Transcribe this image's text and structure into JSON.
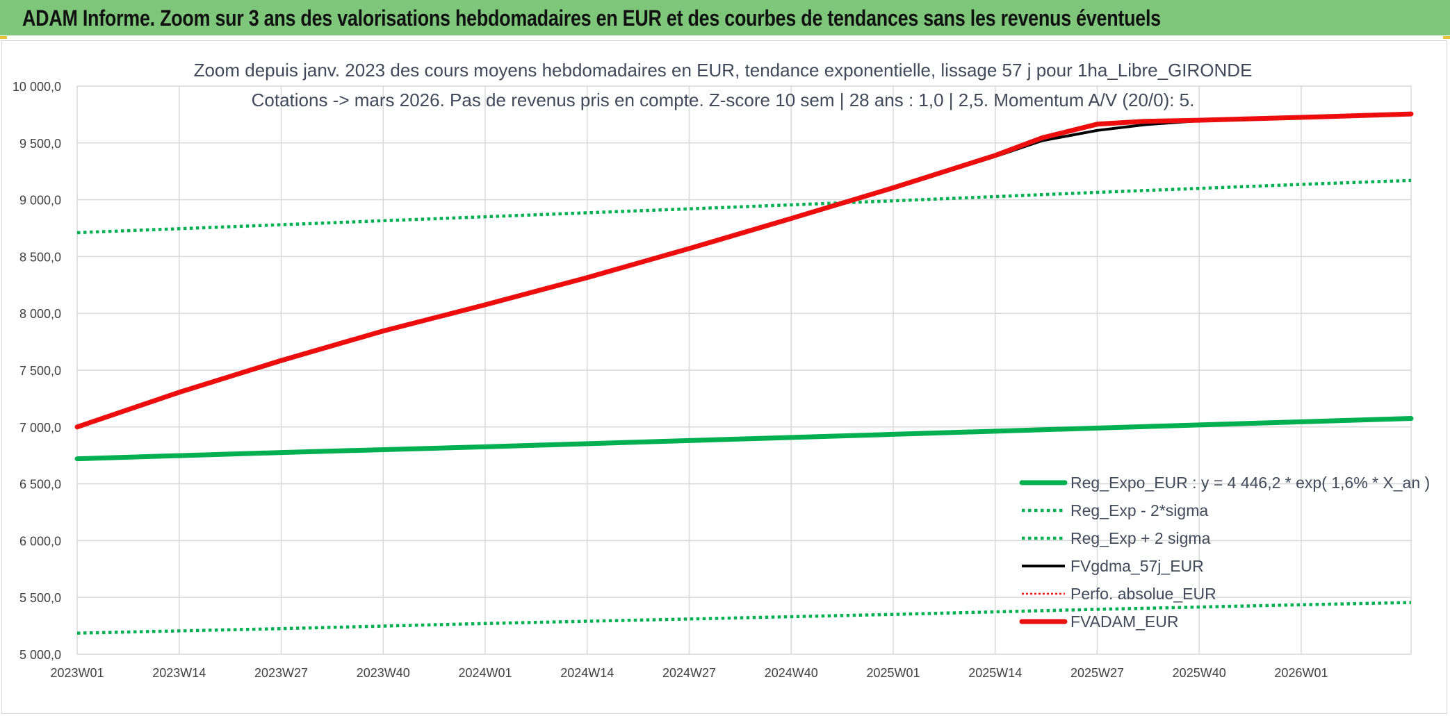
{
  "banner": {
    "title": "ADAM Informe. Zoom sur 3 ans des valorisations hebdomadaires en EUR et des courbes de tendances sans les revenus éventuels"
  },
  "colors": {
    "banner_bg": "#7dc67a",
    "reg_expo": "#00b050",
    "fvgdma": "#000000",
    "perfo": "#ff0000",
    "fvadam": "#e81010",
    "grid": "#d9d9d9"
  },
  "chart_data": {
    "type": "line",
    "title": "Zoom depuis janv. 2023 des cours moyens hebdomadaires en EUR, tendance exponentielle, lissage 57 j pour 1ha_Libre_GIRONDE",
    "subtitle": "Cotations -> mars 2026. Pas de revenus pris en compte. Z-score 10 sem | 28 ans : 1,0 | 2,5. Momentum A/V (20/0): 5.",
    "xlabel": "",
    "ylabel": "",
    "x_tick_labels": [
      "2023W01",
      "2023W14",
      "2023W27",
      "2023W40",
      "2024W01",
      "2024W14",
      "2024W27",
      "2024W40",
      "2025W01",
      "2025W14",
      "2025W27",
      "2025W40",
      "2026W01"
    ],
    "x_ticks_week_index": [
      0,
      13,
      26,
      39,
      52,
      65,
      78,
      91,
      104,
      117,
      130,
      143,
      156
    ],
    "x_range_week_index": [
      0,
      170
    ],
    "ylim": [
      5000,
      10000
    ],
    "y_tick_values": [
      5000,
      5500,
      6000,
      6500,
      7000,
      7500,
      8000,
      8500,
      9000,
      9500,
      10000
    ],
    "y_tick_labels": [
      "5 000,0",
      "5 500,0",
      "6 000,0",
      "6 500,0",
      "7 000,0",
      "7 500,0",
      "8 000,0",
      "8 500,0",
      "9 000,0",
      "9 500,0",
      "10 000,0"
    ],
    "grid": true,
    "legend_position": "bottom-right",
    "series": [
      {
        "name": "Reg_Expo_EUR : y = 4 446,2 * exp( 1,6% *  X_an )",
        "style": "solid-thick",
        "color": "#00b050",
        "x": [
          0,
          26,
          52,
          78,
          104,
          130,
          156,
          170
        ],
        "y": [
          6720,
          6775,
          6825,
          6880,
          6935,
          6990,
          7045,
          7075
        ]
      },
      {
        "name": "Reg_Exp - 2*sigma",
        "style": "dotted",
        "color": "#00b050",
        "x": [
          0,
          26,
          52,
          78,
          104,
          130,
          156,
          170
        ],
        "y": [
          5185,
          5225,
          5270,
          5310,
          5350,
          5395,
          5435,
          5455
        ]
      },
      {
        "name": "Reg_Exp + 2 sigma",
        "style": "dotted",
        "color": "#00b050",
        "x": [
          0,
          26,
          52,
          78,
          104,
          130,
          156,
          170
        ],
        "y": [
          8710,
          8780,
          8850,
          8920,
          8990,
          9065,
          9135,
          9170
        ]
      },
      {
        "name": "FVgdma_57j_EUR",
        "style": "solid",
        "color": "#000000",
        "x": [
          0,
          13,
          26,
          39,
          52,
          65,
          78,
          91,
          104,
          117,
          123,
          130,
          136,
          143,
          156,
          170
        ],
        "y": [
          7000,
          7300,
          7575,
          7840,
          8070,
          8310,
          8565,
          8830,
          9100,
          9380,
          9520,
          9610,
          9660,
          9695,
          9725,
          9755
        ]
      },
      {
        "name": "Perfo. absolue_EUR",
        "style": "dotted-thin",
        "color": "#ff0000",
        "x": [
          0,
          13,
          26,
          39,
          52,
          65,
          78,
          91,
          104,
          117,
          123,
          130,
          136,
          143,
          156,
          170
        ],
        "y": [
          7000,
          7305,
          7585,
          7845,
          8075,
          8315,
          8570,
          8835,
          9105,
          9390,
          9545,
          9665,
          9690,
          9700,
          9725,
          9755
        ]
      },
      {
        "name": "FVADAM_EUR",
        "style": "solid-thick",
        "color": "#e81010",
        "x": [
          0,
          13,
          26,
          39,
          52,
          65,
          78,
          91,
          104,
          117,
          123,
          130,
          136,
          143,
          156,
          170
        ],
        "y": [
          7000,
          7305,
          7585,
          7845,
          8075,
          8315,
          8570,
          8835,
          9105,
          9390,
          9545,
          9665,
          9690,
          9700,
          9725,
          9755
        ]
      }
    ]
  }
}
